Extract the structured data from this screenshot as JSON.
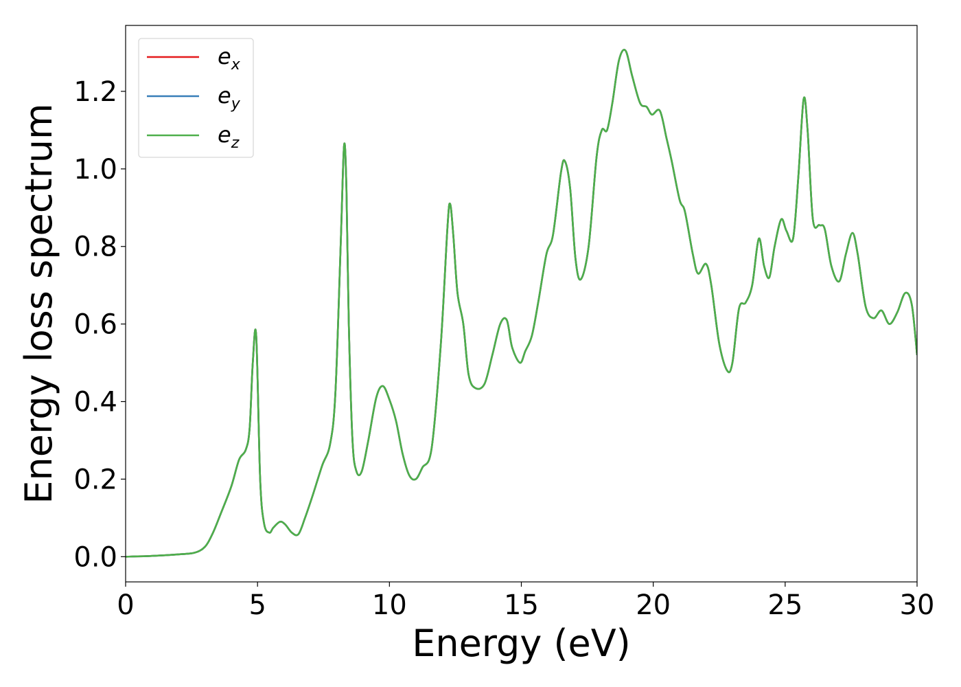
{
  "chart_data": {
    "type": "line",
    "xlabel": "Energy (eV)",
    "ylabel": "Energy loss spectrum",
    "xlim": [
      0,
      30
    ],
    "ylim": [
      -0.065,
      1.37
    ],
    "xticks": [
      0,
      5,
      10,
      15,
      20,
      25,
      30
    ],
    "xtick_labels": [
      "0",
      "5",
      "10",
      "15",
      "20",
      "25",
      "30"
    ],
    "yticks": [
      0.0,
      0.2,
      0.4,
      0.6,
      0.8,
      1.0,
      1.2
    ],
    "ytick_labels": [
      "0.0",
      "0.2",
      "0.4",
      "0.6",
      "0.8",
      "1.0",
      "1.2"
    ],
    "grid": false,
    "legend_position": "top-left",
    "series": [
      {
        "name_base": "e",
        "name_sub": "x",
        "color": "#e41a1c"
      },
      {
        "name_base": "e",
        "name_sub": "y",
        "color": "#377eb8"
      },
      {
        "name_base": "e",
        "name_sub": "z",
        "color": "#4daf4a"
      }
    ],
    "x": [
      0,
      1,
      2,
      2.6,
      3.0,
      3.3,
      3.6,
      4.0,
      4.3,
      4.55,
      4.7,
      4.82,
      4.95,
      5.1,
      5.25,
      5.45,
      5.6,
      5.85,
      6.05,
      6.3,
      6.55,
      6.8,
      7.1,
      7.45,
      7.75,
      7.95,
      8.15,
      8.28,
      8.37,
      8.46,
      8.6,
      8.75,
      8.95,
      9.2,
      9.5,
      9.75,
      10.0,
      10.25,
      10.5,
      10.75,
      11.0,
      11.25,
      11.6,
      11.95,
      12.2,
      12.3,
      12.42,
      12.58,
      12.8,
      13.0,
      13.25,
      13.6,
      13.9,
      14.2,
      14.45,
      14.65,
      14.95,
      15.15,
      15.4,
      15.65,
      15.95,
      16.2,
      16.5,
      16.65,
      16.85,
      17.05,
      17.25,
      17.55,
      17.85,
      18.05,
      18.25,
      18.45,
      18.7,
      18.95,
      19.2,
      19.5,
      19.75,
      19.95,
      20.25,
      20.5,
      20.7,
      21.0,
      21.2,
      21.5,
      21.7,
      22.0,
      22.2,
      22.5,
      22.8,
      23.0,
      23.25,
      23.5,
      23.75,
      24.0,
      24.2,
      24.4,
      24.6,
      24.85,
      25.05,
      25.3,
      25.5,
      25.7,
      25.85,
      26.05,
      26.3,
      26.5,
      26.75,
      27.05,
      27.3,
      27.55,
      27.75,
      28.05,
      28.35,
      28.65,
      28.95,
      29.25,
      29.55,
      29.8,
      30.0
    ],
    "y": [
      0.0,
      0.002,
      0.006,
      0.01,
      0.025,
      0.06,
      0.11,
      0.18,
      0.25,
      0.275,
      0.33,
      0.5,
      0.57,
      0.2,
      0.085,
      0.062,
      0.075,
      0.09,
      0.083,
      0.062,
      0.058,
      0.1,
      0.16,
      0.235,
      0.29,
      0.42,
      0.8,
      1.06,
      0.95,
      0.6,
      0.3,
      0.22,
      0.22,
      0.3,
      0.41,
      0.44,
      0.405,
      0.35,
      0.265,
      0.21,
      0.2,
      0.23,
      0.28,
      0.55,
      0.85,
      0.91,
      0.83,
      0.68,
      0.6,
      0.47,
      0.435,
      0.445,
      0.52,
      0.6,
      0.61,
      0.54,
      0.5,
      0.53,
      0.57,
      0.66,
      0.78,
      0.83,
      0.99,
      1.02,
      0.95,
      0.77,
      0.715,
      0.8,
      1.03,
      1.1,
      1.1,
      1.17,
      1.28,
      1.305,
      1.24,
      1.17,
      1.16,
      1.14,
      1.15,
      1.08,
      1.02,
      0.92,
      0.89,
      0.78,
      0.73,
      0.755,
      0.7,
      0.55,
      0.48,
      0.5,
      0.64,
      0.655,
      0.7,
      0.82,
      0.75,
      0.72,
      0.8,
      0.87,
      0.84,
      0.82,
      0.98,
      1.18,
      1.1,
      0.87,
      0.855,
      0.845,
      0.75,
      0.71,
      0.78,
      0.835,
      0.78,
      0.645,
      0.615,
      0.635,
      0.6,
      0.63,
      0.68,
      0.65,
      0.52
    ]
  }
}
